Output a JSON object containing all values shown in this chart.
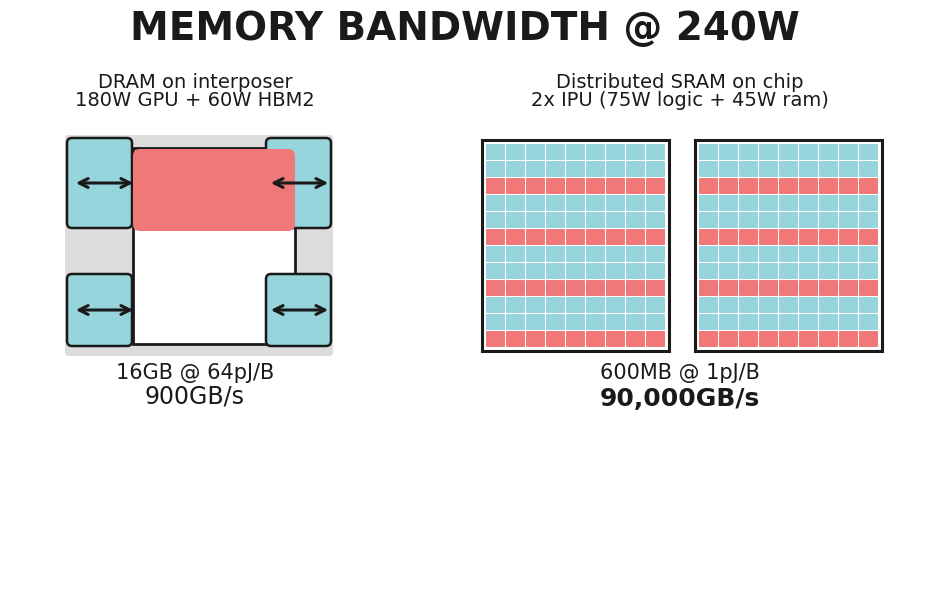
{
  "title": "MEMORY BANDWIDTH @ 240W",
  "title_fontsize": 28,
  "bg_color": "#ffffff",
  "left_label1": "DRAM on interposer",
  "left_label2": "180W GPU + 60W HBM2",
  "left_sub1": "16GB @ 64pJ/B",
  "left_sub2": "900GB/s",
  "right_label1": "Distributed SRAM on chip",
  "right_label2": "2x IPU (75W logic + 45W ram)",
  "right_sub1": "600MB @ 1pJ/B",
  "right_sub2": "90,000GB/s",
  "light_blue": "#96d5dc",
  "pink_red": "#f07878",
  "gray_bg": "#dcdcdc",
  "dark": "#1a1a1a",
  "ipu_cols": 9,
  "ipu_rows": 12,
  "ipu_red_rows": [
    0,
    3,
    6,
    9
  ],
  "label_fontsize": 14,
  "sub1_fontsize": 15,
  "sub2_fontsize": 17
}
